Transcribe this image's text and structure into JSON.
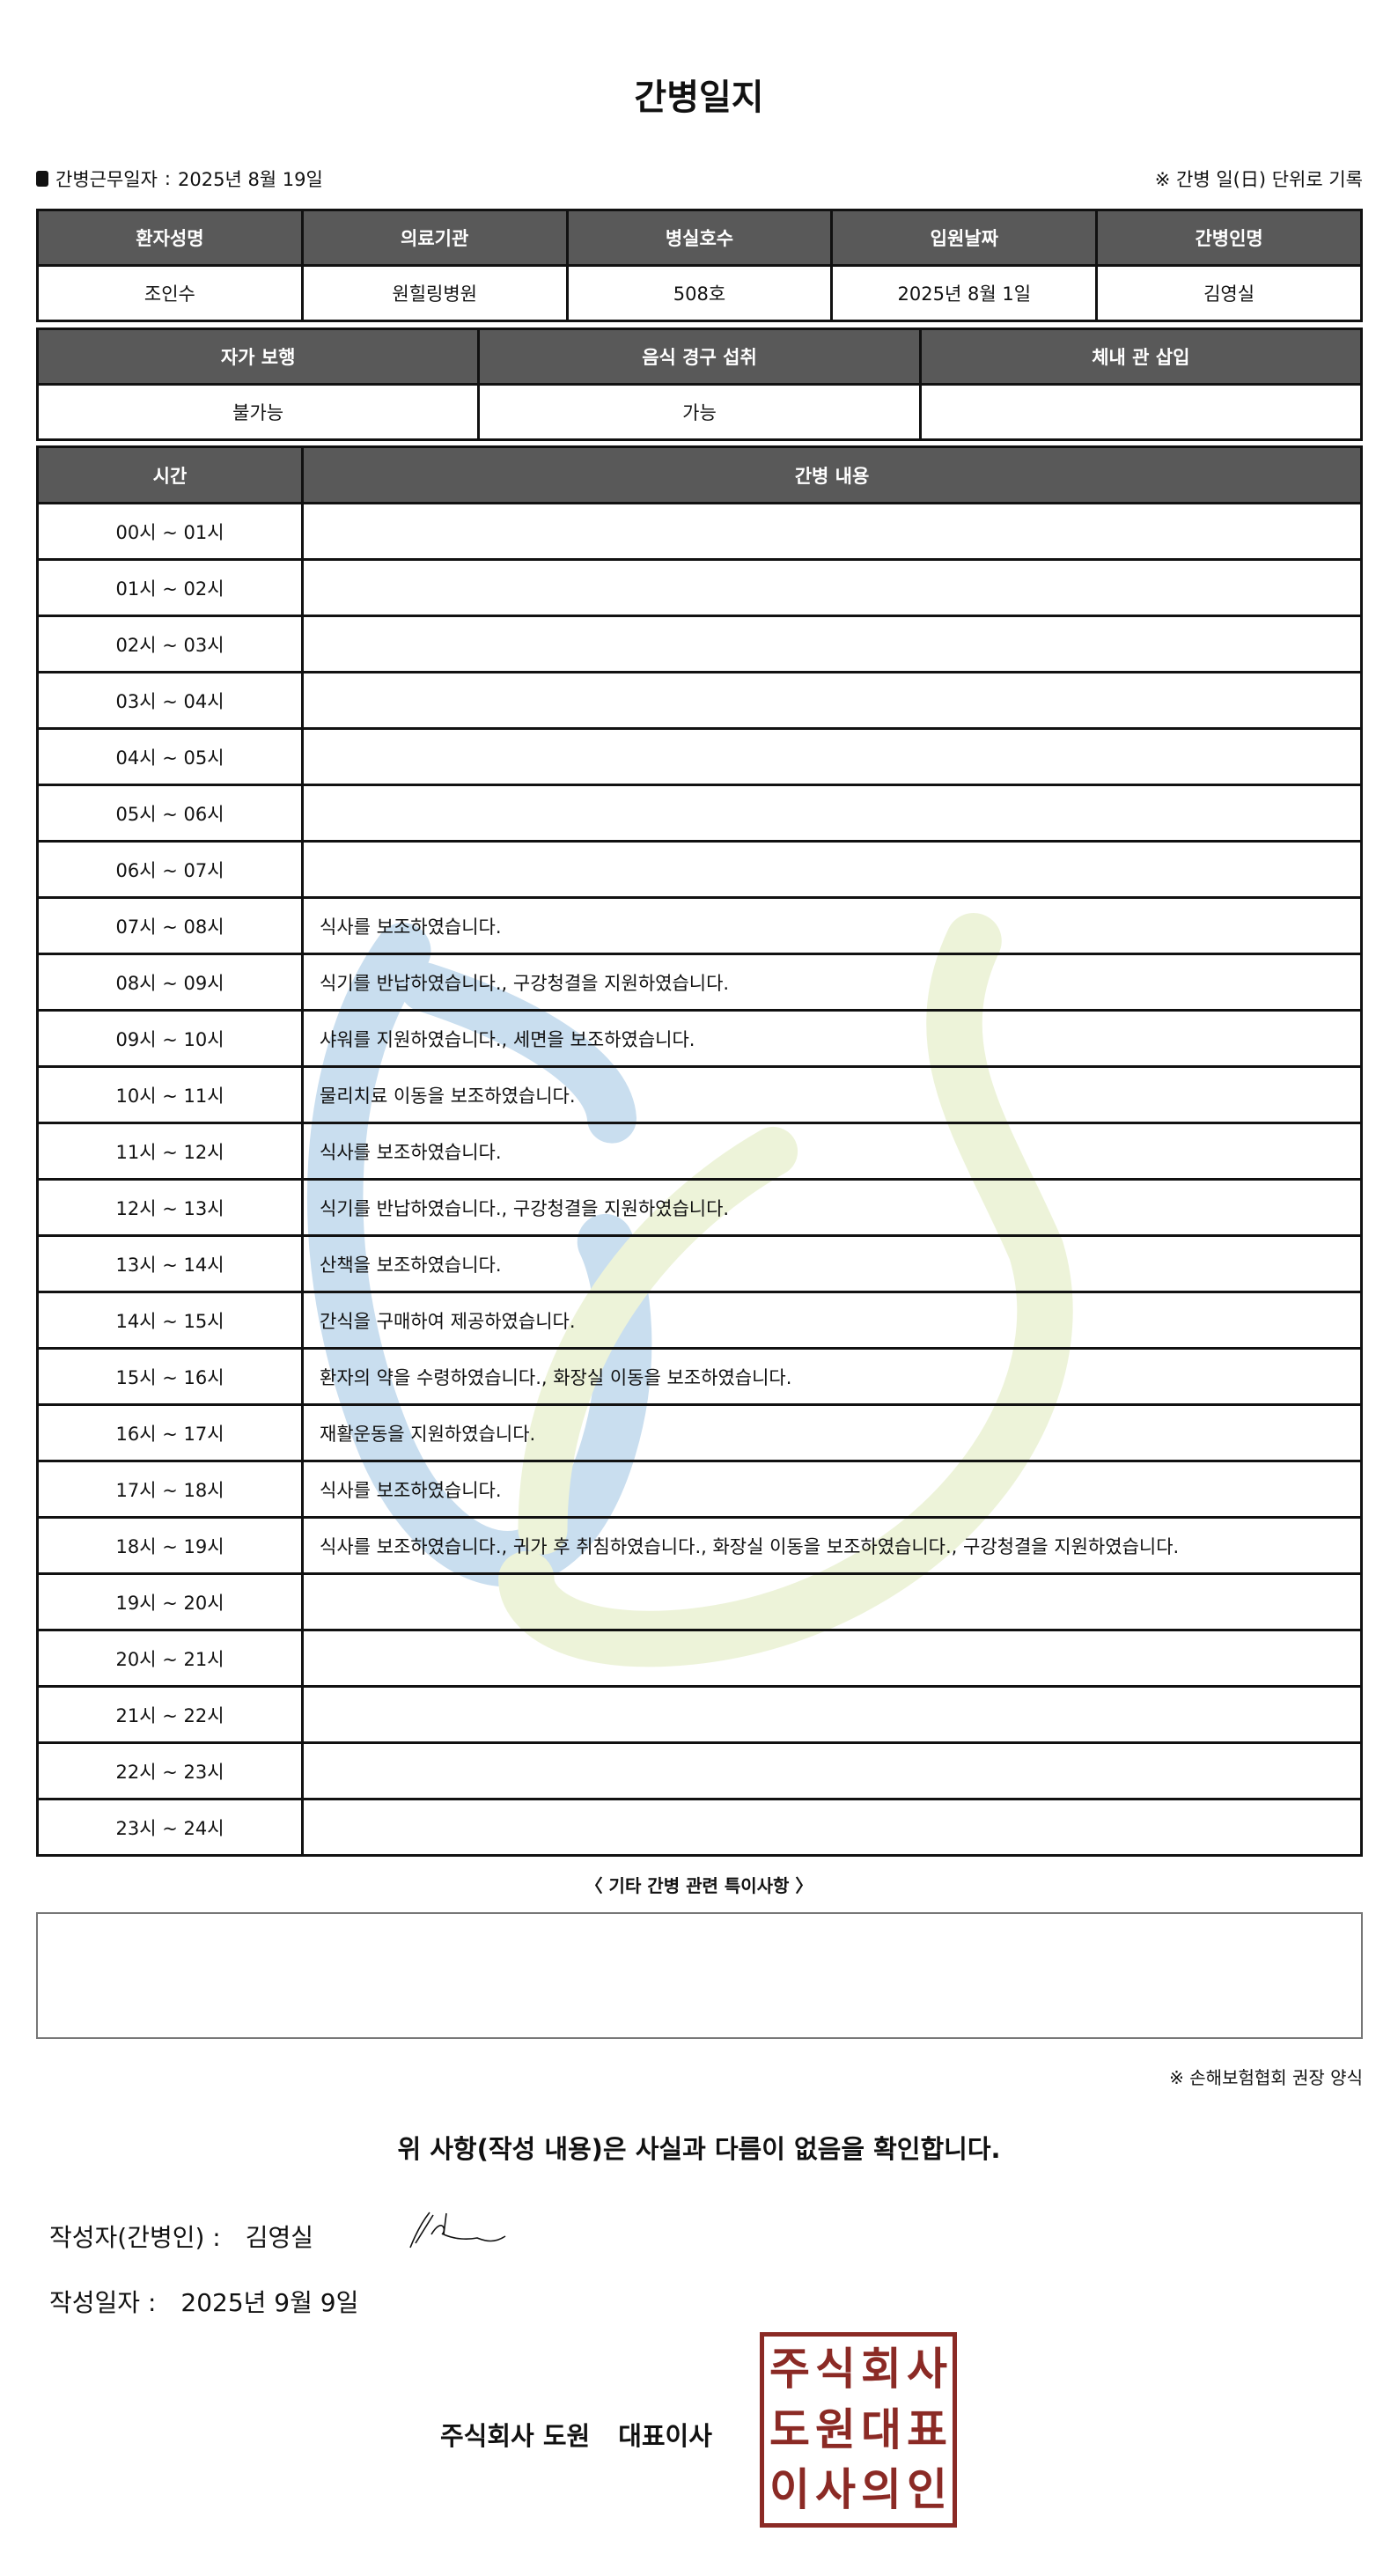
{
  "title": "간병일지",
  "work_date_label": "간병근무일자",
  "work_date": "2025년 8월 19일",
  "unit_note": "※ 간병 일(日) 단위로 기록",
  "patient_table": {
    "headers": [
      "환자성명",
      "의료기관",
      "병실호수",
      "입원날짜",
      "간병인명"
    ],
    "values": [
      "조인수",
      "원힐링병원",
      "508호",
      "2025년 8월 1일",
      "김영실"
    ]
  },
  "status_table": {
    "headers": [
      "자가 보행",
      "음식 경구 섭취",
      "체내 관 삽입"
    ],
    "values": [
      "불가능",
      "가능",
      ""
    ]
  },
  "log_table": {
    "headers": [
      "시간",
      "간병 내용"
    ],
    "rows": [
      {
        "time": "00시 ~ 01시",
        "content": ""
      },
      {
        "time": "01시 ~ 02시",
        "content": ""
      },
      {
        "time": "02시 ~ 03시",
        "content": ""
      },
      {
        "time": "03시 ~ 04시",
        "content": ""
      },
      {
        "time": "04시 ~ 05시",
        "content": ""
      },
      {
        "time": "05시 ~ 06시",
        "content": ""
      },
      {
        "time": "06시 ~ 07시",
        "content": ""
      },
      {
        "time": "07시 ~ 08시",
        "content": "식사를 보조하였습니다."
      },
      {
        "time": "08시 ~ 09시",
        "content": "식기를 반납하였습니다., 구강청결을 지원하였습니다."
      },
      {
        "time": "09시 ~ 10시",
        "content": "샤워를 지원하였습니다., 세면을 보조하였습니다."
      },
      {
        "time": "10시 ~ 11시",
        "content": "물리치료 이동을 보조하였습니다."
      },
      {
        "time": "11시 ~ 12시",
        "content": "식사를 보조하였습니다."
      },
      {
        "time": "12시 ~ 13시",
        "content": "식기를 반납하였습니다., 구강청결을 지원하였습니다."
      },
      {
        "time": "13시 ~ 14시",
        "content": "산책을 보조하였습니다."
      },
      {
        "time": "14시 ~ 15시",
        "content": "간식을 구매하여 제공하였습니다."
      },
      {
        "time": "15시 ~ 16시",
        "content": "환자의 약을 수령하였습니다., 화장실 이동을 보조하였습니다."
      },
      {
        "time": "16시 ~ 17시",
        "content": "재활운동을 지원하였습니다."
      },
      {
        "time": "17시 ~ 18시",
        "content": "식사를 보조하였습니다."
      },
      {
        "time": "18시 ~ 19시",
        "content": "식사를 보조하였습니다., 귀가 후 취침하였습니다., 화장실 이동을 보조하였습니다., 구강청결을 지원하였습니다."
      },
      {
        "time": "19시 ~ 20시",
        "content": ""
      },
      {
        "time": "20시 ~ 21시",
        "content": ""
      },
      {
        "time": "21시 ~ 22시",
        "content": ""
      },
      {
        "time": "22시 ~ 23시",
        "content": ""
      },
      {
        "time": "23시 ~ 24시",
        "content": ""
      }
    ]
  },
  "special_label": "〈 기타 간병 관련 특이사항 〉",
  "special_notes": "",
  "form_note": "※ 손해보험협회 권장 양식",
  "confirm": "위 사항(작성 내용)은 사실과 다름이 없음을 확인합니다.",
  "writer_label": "작성자(간병인) :",
  "writer_name": "김영실",
  "write_date_label": "작성일자 :",
  "write_date": "2025년 9월 9일",
  "company": "주식회사 도원",
  "ceo": "대표이사",
  "seal_text": [
    "주",
    "식",
    "회",
    "사",
    "도",
    "원",
    "대",
    "표",
    "이",
    "사",
    "의",
    "인"
  ],
  "colors": {
    "header_bg": "#595959",
    "seal": "#8b2a25",
    "watermark_blue": "#5b9bd0",
    "watermark_green": "#c8dc8a"
  }
}
